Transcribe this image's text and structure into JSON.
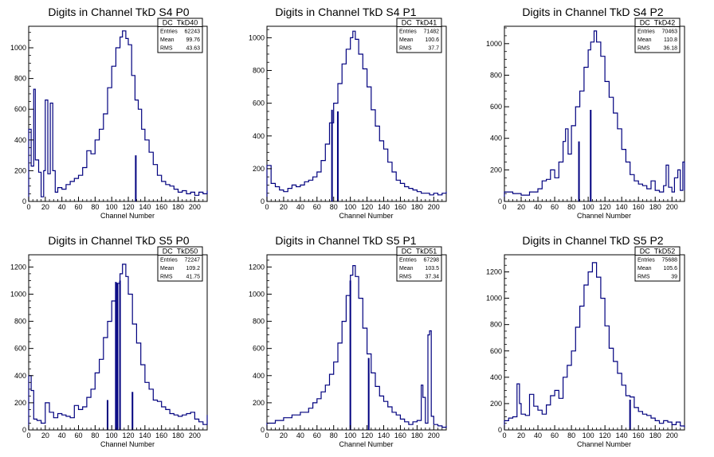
{
  "colors": {
    "histogram": "#00007f",
    "axis": "#000000",
    "stats_box": "#000000"
  },
  "chart_data": [
    {
      "type": "histogram",
      "title": "Digits in Channel TkD S4 P0",
      "xlabel": "Channel Number",
      "xlim": [
        0,
        215
      ],
      "ylim": [
        0,
        1140
      ],
      "xticks": [
        0,
        20,
        40,
        60,
        80,
        100,
        120,
        140,
        160,
        180,
        200
      ],
      "yticks": [
        0,
        200,
        400,
        600,
        800,
        1000
      ],
      "stats": {
        "name": "DC_TkD40",
        "rows": [
          [
            "Entries",
            "62243"
          ],
          [
            "Mean",
            "99.76"
          ],
          [
            "RMS",
            "43.63"
          ]
        ]
      },
      "curve": [
        [
          0,
          0
        ],
        [
          0,
          470
        ],
        [
          3,
          230
        ],
        [
          6,
          730
        ],
        [
          8,
          270
        ],
        [
          12,
          190
        ],
        [
          15,
          30
        ],
        [
          18,
          200
        ],
        [
          20,
          660
        ],
        [
          23,
          180
        ],
        [
          26,
          640
        ],
        [
          29,
          200
        ],
        [
          32,
          60
        ],
        [
          35,
          90
        ],
        [
          40,
          80
        ],
        [
          45,
          110
        ],
        [
          50,
          130
        ],
        [
          55,
          150
        ],
        [
          60,
          170
        ],
        [
          65,
          220
        ],
        [
          70,
          330
        ],
        [
          75,
          310
        ],
        [
          80,
          400
        ],
        [
          85,
          470
        ],
        [
          90,
          570
        ],
        [
          95,
          740
        ],
        [
          100,
          880
        ],
        [
          105,
          1000
        ],
        [
          110,
          1070
        ],
        [
          113,
          1110
        ],
        [
          117,
          1060
        ],
        [
          120,
          1020
        ],
        [
          124,
          820
        ],
        [
          128,
          660
        ],
        [
          132,
          600
        ],
        [
          136,
          470
        ],
        [
          140,
          400
        ],
        [
          145,
          320
        ],
        [
          150,
          240
        ],
        [
          155,
          170
        ],
        [
          160,
          130
        ],
        [
          165,
          110
        ],
        [
          170,
          100
        ],
        [
          175,
          80
        ],
        [
          180,
          60
        ],
        [
          185,
          70
        ],
        [
          190,
          50
        ],
        [
          195,
          60
        ],
        [
          200,
          40
        ],
        [
          205,
          60
        ],
        [
          210,
          50
        ],
        [
          215,
          70
        ]
      ],
      "spikes": [
        [
          129,
          300
        ]
      ]
    },
    {
      "type": "histogram",
      "title": "Digits in Channel TkD S4 P1",
      "xlabel": "Channel Number",
      "xlim": [
        0,
        215
      ],
      "ylim": [
        0,
        1070
      ],
      "xticks": [
        0,
        20,
        40,
        60,
        80,
        100,
        120,
        140,
        160,
        180,
        200
      ],
      "yticks": [
        0,
        200,
        400,
        600,
        800,
        1000
      ],
      "stats": {
        "name": "DC_TkD41",
        "rows": [
          [
            "Entries",
            "71482"
          ],
          [
            "Mean",
            "100.6"
          ],
          [
            "RMS",
            "37.7"
          ]
        ]
      },
      "curve": [
        [
          0,
          0
        ],
        [
          0,
          220
        ],
        [
          5,
          110
        ],
        [
          10,
          90
        ],
        [
          15,
          70
        ],
        [
          20,
          60
        ],
        [
          25,
          80
        ],
        [
          30,
          100
        ],
        [
          35,
          90
        ],
        [
          40,
          100
        ],
        [
          45,
          120
        ],
        [
          50,
          130
        ],
        [
          55,
          150
        ],
        [
          60,
          180
        ],
        [
          65,
          250
        ],
        [
          70,
          350
        ],
        [
          75,
          480
        ],
        [
          80,
          600
        ],
        [
          85,
          720
        ],
        [
          90,
          840
        ],
        [
          95,
          930
        ],
        [
          100,
          1000
        ],
        [
          103,
          1040
        ],
        [
          106,
          990
        ],
        [
          110,
          900
        ],
        [
          115,
          810
        ],
        [
          120,
          700
        ],
        [
          125,
          560
        ],
        [
          130,
          460
        ],
        [
          135,
          370
        ],
        [
          140,
          320
        ],
        [
          145,
          240
        ],
        [
          150,
          180
        ],
        [
          155,
          130
        ],
        [
          160,
          110
        ],
        [
          165,
          90
        ],
        [
          170,
          80
        ],
        [
          175,
          70
        ],
        [
          180,
          60
        ],
        [
          185,
          50
        ],
        [
          190,
          50
        ],
        [
          195,
          40
        ],
        [
          200,
          50
        ],
        [
          205,
          40
        ],
        [
          210,
          50
        ],
        [
          215,
          60
        ]
      ],
      "spikes": [
        [
          78,
          560
        ],
        [
          85,
          550
        ]
      ]
    },
    {
      "type": "histogram",
      "title": "Digits in Channel TkD S4 P2",
      "xlabel": "Channel Number",
      "xlim": [
        0,
        215
      ],
      "ylim": [
        0,
        1110
      ],
      "xticks": [
        0,
        20,
        40,
        60,
        80,
        100,
        120,
        140,
        160,
        180,
        200
      ],
      "yticks": [
        0,
        200,
        400,
        600,
        800,
        1000
      ],
      "stats": {
        "name": "DC_TkD42",
        "rows": [
          [
            "Entries",
            "70463"
          ],
          [
            "Mean",
            "110.8"
          ],
          [
            "RMS",
            "36.18"
          ]
        ]
      },
      "curve": [
        [
          0,
          0
        ],
        [
          0,
          60
        ],
        [
          10,
          50
        ],
        [
          20,
          40
        ],
        [
          30,
          60
        ],
        [
          40,
          80
        ],
        [
          45,
          130
        ],
        [
          50,
          140
        ],
        [
          55,
          200
        ],
        [
          60,
          150
        ],
        [
          65,
          250
        ],
        [
          70,
          380
        ],
        [
          73,
          460
        ],
        [
          76,
          300
        ],
        [
          80,
          480
        ],
        [
          85,
          600
        ],
        [
          90,
          700
        ],
        [
          95,
          850
        ],
        [
          100,
          960
        ],
        [
          103,
          1010
        ],
        [
          107,
          1080
        ],
        [
          110,
          1010
        ],
        [
          115,
          920
        ],
        [
          120,
          760
        ],
        [
          125,
          660
        ],
        [
          130,
          560
        ],
        [
          135,
          460
        ],
        [
          140,
          330
        ],
        [
          145,
          250
        ],
        [
          150,
          170
        ],
        [
          155,
          130
        ],
        [
          160,
          110
        ],
        [
          165,
          100
        ],
        [
          170,
          80
        ],
        [
          175,
          130
        ],
        [
          180,
          70
        ],
        [
          185,
          60
        ],
        [
          190,
          100
        ],
        [
          193,
          230
        ],
        [
          196,
          90
        ],
        [
          200,
          60
        ],
        [
          203,
          150
        ],
        [
          207,
          200
        ],
        [
          210,
          70
        ],
        [
          213,
          250
        ],
        [
          215,
          70
        ]
      ],
      "spikes": [
        [
          89,
          380
        ],
        [
          103,
          580
        ]
      ]
    },
    {
      "type": "histogram",
      "title": "Digits in Channel TkD S5 P0",
      "xlabel": "Channel Number",
      "xlim": [
        0,
        215
      ],
      "ylim": [
        0,
        1290
      ],
      "xticks": [
        0,
        20,
        40,
        60,
        80,
        100,
        120,
        140,
        160,
        180,
        200
      ],
      "yticks": [
        0,
        200,
        400,
        600,
        800,
        1000,
        1200
      ],
      "stats": {
        "name": "DC_TkD50",
        "rows": [
          [
            "Entries",
            "72247"
          ],
          [
            "Mean",
            "109.2"
          ],
          [
            "RMS",
            "41.75"
          ]
        ]
      },
      "curve": [
        [
          0,
          0
        ],
        [
          0,
          400
        ],
        [
          3,
          290
        ],
        [
          6,
          80
        ],
        [
          10,
          70
        ],
        [
          15,
          50
        ],
        [
          20,
          200
        ],
        [
          25,
          130
        ],
        [
          30,
          90
        ],
        [
          35,
          120
        ],
        [
          40,
          110
        ],
        [
          45,
          100
        ],
        [
          50,
          90
        ],
        [
          55,
          180
        ],
        [
          60,
          150
        ],
        [
          65,
          170
        ],
        [
          70,
          240
        ],
        [
          75,
          300
        ],
        [
          80,
          420
        ],
        [
          85,
          520
        ],
        [
          90,
          680
        ],
        [
          95,
          800
        ],
        [
          100,
          950
        ],
        [
          105,
          1080
        ],
        [
          110,
          1150
        ],
        [
          113,
          1220
        ],
        [
          117,
          1130
        ],
        [
          120,
          1000
        ],
        [
          125,
          780
        ],
        [
          130,
          640
        ],
        [
          135,
          480
        ],
        [
          140,
          350
        ],
        [
          145,
          300
        ],
        [
          150,
          220
        ],
        [
          155,
          210
        ],
        [
          160,
          170
        ],
        [
          165,
          150
        ],
        [
          170,
          120
        ],
        [
          175,
          110
        ],
        [
          180,
          100
        ],
        [
          185,
          110
        ],
        [
          190,
          120
        ],
        [
          195,
          130
        ],
        [
          200,
          80
        ],
        [
          205,
          60
        ],
        [
          210,
          40
        ],
        [
          215,
          110
        ]
      ],
      "spikes": [
        [
          95,
          220
        ],
        [
          105,
          1090
        ],
        [
          107,
          1080
        ],
        [
          110,
          1100
        ],
        [
          125,
          280
        ]
      ]
    },
    {
      "type": "histogram",
      "title": "Digits in Channel TkD S5 P1",
      "xlabel": "Channel Number",
      "xlim": [
        0,
        215
      ],
      "ylim": [
        0,
        1290
      ],
      "xticks": [
        0,
        20,
        40,
        60,
        80,
        100,
        120,
        140,
        160,
        180,
        200
      ],
      "yticks": [
        0,
        200,
        400,
        600,
        800,
        1000,
        1200
      ],
      "stats": {
        "name": "DC_TkD51",
        "rows": [
          [
            "Entries",
            "67298"
          ],
          [
            "Mean",
            "103.5"
          ],
          [
            "RMS",
            "37.34"
          ]
        ]
      },
      "curve": [
        [
          0,
          0
        ],
        [
          0,
          50
        ],
        [
          10,
          70
        ],
        [
          20,
          90
        ],
        [
          30,
          110
        ],
        [
          40,
          130
        ],
        [
          50,
          160
        ],
        [
          55,
          200
        ],
        [
          60,
          230
        ],
        [
          65,
          280
        ],
        [
          70,
          330
        ],
        [
          75,
          410
        ],
        [
          80,
          500
        ],
        [
          85,
          640
        ],
        [
          90,
          800
        ],
        [
          95,
          990
        ],
        [
          100,
          1140
        ],
        [
          103,
          1210
        ],
        [
          106,
          1130
        ],
        [
          110,
          970
        ],
        [
          115,
          750
        ],
        [
          120,
          560
        ],
        [
          125,
          420
        ],
        [
          130,
          320
        ],
        [
          135,
          250
        ],
        [
          140,
          210
        ],
        [
          145,
          170
        ],
        [
          150,
          130
        ],
        [
          155,
          110
        ],
        [
          160,
          80
        ],
        [
          165,
          60
        ],
        [
          170,
          40
        ],
        [
          175,
          60
        ],
        [
          180,
          70
        ],
        [
          185,
          330
        ],
        [
          187,
          240
        ],
        [
          190,
          50
        ],
        [
          193,
          700
        ],
        [
          195,
          730
        ],
        [
          197,
          100
        ],
        [
          200,
          40
        ],
        [
          205,
          30
        ],
        [
          210,
          20
        ],
        [
          215,
          30
        ]
      ],
      "spikes": [
        [
          100,
          1100
        ],
        [
          122,
          530
        ]
      ]
    },
    {
      "type": "histogram",
      "title": "Digits in Channel TkD S5 P2",
      "xlabel": "Channel Number",
      "xlim": [
        0,
        215
      ],
      "ylim": [
        0,
        1330
      ],
      "xticks": [
        0,
        20,
        40,
        60,
        80,
        100,
        120,
        140,
        160,
        180,
        200
      ],
      "yticks": [
        0,
        200,
        400,
        600,
        800,
        1000,
        1200
      ],
      "stats": {
        "name": "DC_TkD52",
        "rows": [
          [
            "Entries",
            "75688"
          ],
          [
            "Mean",
            "105.6"
          ],
          [
            "RMS",
            "39"
          ]
        ]
      },
      "curve": [
        [
          0,
          0
        ],
        [
          0,
          70
        ],
        [
          5,
          90
        ],
        [
          10,
          100
        ],
        [
          15,
          350
        ],
        [
          18,
          200
        ],
        [
          20,
          120
        ],
        [
          25,
          110
        ],
        [
          30,
          270
        ],
        [
          35,
          180
        ],
        [
          40,
          150
        ],
        [
          45,
          120
        ],
        [
          50,
          190
        ],
        [
          55,
          260
        ],
        [
          60,
          300
        ],
        [
          65,
          240
        ],
        [
          70,
          400
        ],
        [
          75,
          490
        ],
        [
          80,
          600
        ],
        [
          85,
          780
        ],
        [
          90,
          940
        ],
        [
          95,
          1100
        ],
        [
          100,
          1200
        ],
        [
          105,
          1270
        ],
        [
          110,
          1160
        ],
        [
          115,
          1000
        ],
        [
          120,
          790
        ],
        [
          125,
          620
        ],
        [
          130,
          520
        ],
        [
          135,
          430
        ],
        [
          140,
          340
        ],
        [
          145,
          260
        ],
        [
          150,
          250
        ],
        [
          155,
          170
        ],
        [
          160,
          140
        ],
        [
          165,
          120
        ],
        [
          170,
          110
        ],
        [
          175,
          90
        ],
        [
          180,
          70
        ],
        [
          185,
          50
        ],
        [
          190,
          70
        ],
        [
          195,
          60
        ],
        [
          200,
          40
        ],
        [
          205,
          60
        ],
        [
          210,
          30
        ],
        [
          215,
          20
        ]
      ],
      "spikes": [
        [
          150,
          230
        ]
      ]
    }
  ]
}
